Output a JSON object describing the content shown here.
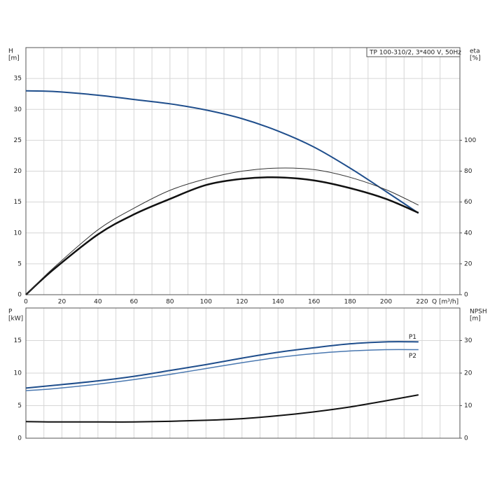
{
  "chart_data": [
    {
      "type": "line",
      "info_box": "TP 100-310/2, 3*400 V, 50Hz",
      "ylabel": "H",
      "yunit": "[m]",
      "y2label": "eta",
      "y2unit": "[%]",
      "xlabel": "Q [m³/h]",
      "x": [
        0,
        15,
        40,
        60,
        80,
        100,
        120,
        140,
        160,
        180,
        200,
        218
      ],
      "xlim": [
        0,
        241
      ],
      "xticks": [
        0,
        20,
        40,
        60,
        80,
        100,
        120,
        140,
        160,
        180,
        200,
        220
      ],
      "x_gridlines": [
        10,
        30,
        50,
        70,
        90,
        110,
        130,
        150,
        170,
        190,
        210,
        230
      ],
      "ylim": [
        0,
        40
      ],
      "yticks": [
        0,
        5,
        10,
        15,
        20,
        25,
        30,
        35
      ],
      "y2lim": [
        0,
        160
      ],
      "y2ticks": [
        0,
        20,
        40,
        60,
        80,
        100
      ],
      "grid": true,
      "series": [
        {
          "color": "#1f4e8c",
          "width": 2,
          "values": [
            33,
            32.9,
            32.3,
            31.6,
            30.9,
            29.9,
            28.5,
            26.5,
            23.9,
            20.5,
            16.7,
            13.2
          ]
        },
        {
          "color": "#111111",
          "width": 2.5,
          "axis": "y2",
          "values": [
            0,
            16,
            39,
            52,
            62,
            71,
            75,
            76,
            74,
            69,
            62,
            53
          ]
        },
        {
          "color": "#333333",
          "width": 1,
          "axis": "y2",
          "values": [
            0,
            17,
            42,
            56,
            67.6,
            75,
            80,
            82,
            81,
            76,
            68,
            58
          ]
        }
      ]
    },
    {
      "type": "line",
      "ylabel": "P",
      "yunit": "[kW]",
      "y2label": "NPSH",
      "y2unit": "[m]",
      "x": [
        0,
        15,
        40,
        60,
        80,
        100,
        120,
        140,
        160,
        180,
        200,
        218
      ],
      "xlim": [
        0,
        241
      ],
      "x_gridlines": [
        0,
        10,
        20,
        30,
        40,
        50,
        60,
        70,
        80,
        90,
        100,
        110,
        120,
        130,
        140,
        150,
        160,
        170,
        180,
        190,
        200,
        210,
        220,
        230
      ],
      "ylim": [
        0,
        20
      ],
      "yticks": [
        0,
        5,
        10,
        15
      ],
      "y2lim": [
        0,
        40
      ],
      "y2ticks": [
        0,
        10,
        20,
        30
      ],
      "grid": true,
      "series": [
        {
          "name": "P1",
          "color": "#1f4e8c",
          "width": 2,
          "values": [
            7.7,
            8.1,
            8.8,
            9.5,
            10.4,
            11.3,
            12.3,
            13.2,
            13.9,
            14.5,
            14.8,
            14.8
          ]
        },
        {
          "name": "P2",
          "color": "#4a78b0",
          "width": 1.5,
          "values": [
            7.3,
            7.6,
            8.3,
            9.0,
            9.8,
            10.7,
            11.6,
            12.4,
            13.0,
            13.4,
            13.6,
            13.6
          ]
        },
        {
          "color": "#111111",
          "width": 2,
          "axis": "y2",
          "values": [
            5.1,
            5.0,
            5.0,
            5.0,
            5.2,
            5.5,
            6.0,
            6.9,
            8.1,
            9.6,
            11.5,
            13.3
          ]
        }
      ]
    }
  ]
}
